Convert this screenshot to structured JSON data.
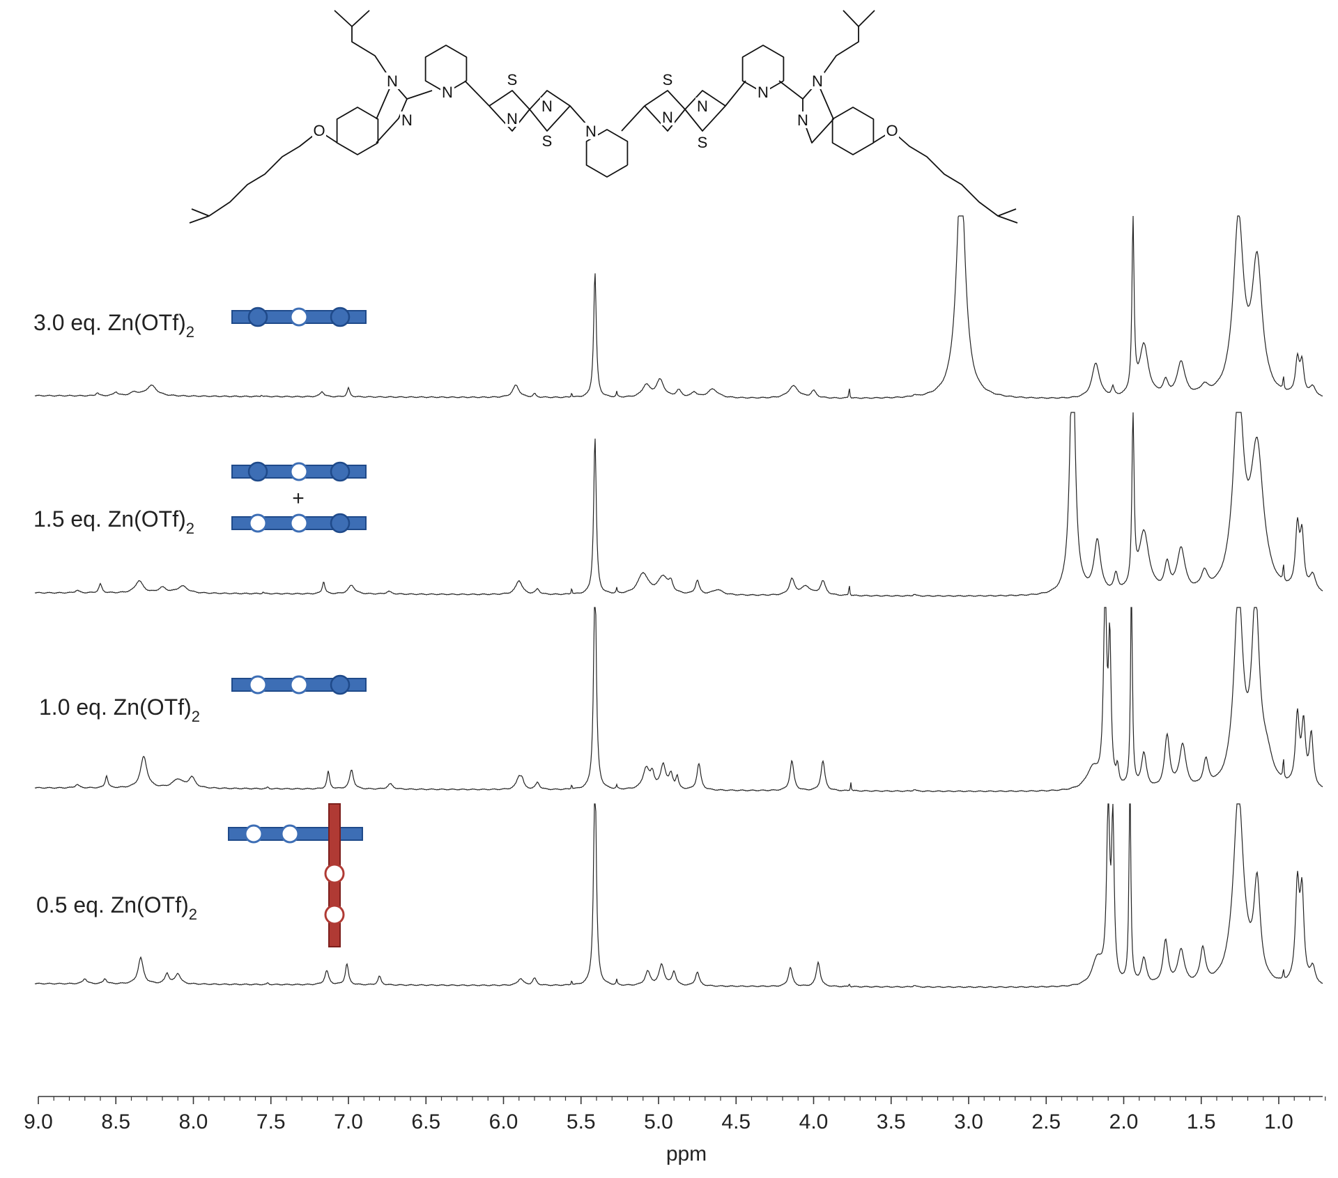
{
  "chart_data": {
    "type": "line",
    "xlabel": "ppm",
    "xlim": [
      9.0,
      0.6
    ],
    "x_reversed": true,
    "ticks": [
      "9.0",
      "8.5",
      "8.0",
      "7.5",
      "7.0",
      "6.5",
      "6.0",
      "5.5",
      "5.0",
      "4.5",
      "4.0",
      "3.5",
      "3.0",
      "2.5",
      "2.0",
      "1.5",
      "1.0"
    ],
    "colors": {
      "trace": "#222222",
      "ligand_blue": "#3d6eb5",
      "ligand_blue_dark": "#1f4a8a",
      "ligand_red": "#b03a34",
      "ligand_red_dark": "#7d1f1c"
    },
    "molecule_labels": {
      "n_left": "N",
      "n_left2": "N",
      "n_py1": "N",
      "n_tt1a": "N",
      "n_tt1b": "N",
      "s_tt1a": "S",
      "s_tt1b": "S",
      "n_py_c": "N",
      "n_tt2a": "N",
      "n_tt2b": "N",
      "s_tt2a": "S",
      "s_tt2b": "S",
      "n_py2": "N",
      "n_right": "N",
      "n_right2": "N",
      "o_left": "O",
      "o_right": "O"
    },
    "series": [
      {
        "label_main": "3.0 eq. Zn(OTf)",
        "label_sub": "2",
        "complex": {
          "rows": [
            [
              "filled",
              "open",
              "filled"
            ]
          ]
        },
        "peaks": [
          [
            8.62,
            0.01,
            0.018
          ],
          [
            8.5,
            0.015,
            0.022
          ],
          [
            8.38,
            0.03,
            0.02
          ],
          [
            8.27,
            0.04,
            0.06
          ],
          [
            7.56,
            0.005,
            0.01
          ],
          [
            7.17,
            0.015,
            0.03
          ],
          [
            7.0,
            0.01,
            0.05
          ],
          [
            5.92,
            0.025,
            0.07
          ],
          [
            5.8,
            0.01,
            0.02
          ],
          [
            5.56,
            0.003,
            0.03
          ],
          [
            5.41,
            0.01,
            0.72
          ],
          [
            5.27,
            0.004,
            0.03
          ],
          [
            5.08,
            0.03,
            0.07
          ],
          [
            4.99,
            0.03,
            0.1
          ],
          [
            4.87,
            0.02,
            0.04
          ],
          [
            4.77,
            0.02,
            0.03
          ],
          [
            4.65,
            0.04,
            0.05
          ],
          [
            4.13,
            0.04,
            0.07
          ],
          [
            4.0,
            0.02,
            0.04
          ],
          [
            3.77,
            0.003,
            0.07
          ],
          [
            3.35,
            0.01,
            0.01
          ],
          [
            3.05,
            0.035,
            1.3
          ],
          [
            2.18,
            0.03,
            0.2
          ],
          [
            2.07,
            0.01,
            0.05
          ],
          [
            1.94,
            0.008,
            1.0
          ],
          [
            1.87,
            0.035,
            0.3
          ],
          [
            1.73,
            0.02,
            0.08
          ],
          [
            1.63,
            0.03,
            0.2
          ],
          [
            1.48,
            0.03,
            0.05
          ],
          [
            1.26,
            0.04,
            1.0
          ],
          [
            1.14,
            0.04,
            0.75
          ],
          [
            0.97,
            0.004,
            0.08
          ],
          [
            0.88,
            0.015,
            0.2
          ],
          [
            0.85,
            0.015,
            0.18
          ],
          [
            0.78,
            0.025,
            0.06
          ]
        ]
      },
      {
        "label_main": "1.5 eq. Zn(OTf)",
        "label_sub": "2",
        "complex": {
          "rows": [
            [
              "filled",
              "open",
              "filled"
            ],
            [
              "open",
              "open",
              "filled"
            ]
          ],
          "joiner": "+"
        },
        "peaks": [
          [
            8.75,
            0.015,
            0.015
          ],
          [
            8.6,
            0.012,
            0.05
          ],
          [
            8.35,
            0.03,
            0.07
          ],
          [
            8.2,
            0.03,
            0.03
          ],
          [
            8.07,
            0.04,
            0.04
          ],
          [
            7.55,
            0.005,
            0.01
          ],
          [
            7.16,
            0.01,
            0.07
          ],
          [
            6.98,
            0.025,
            0.05
          ],
          [
            6.74,
            0.02,
            0.015
          ],
          [
            5.9,
            0.025,
            0.08
          ],
          [
            5.78,
            0.015,
            0.03
          ],
          [
            5.56,
            0.003,
            0.04
          ],
          [
            5.41,
            0.01,
            0.9
          ],
          [
            5.27,
            0.004,
            0.03
          ],
          [
            5.1,
            0.04,
            0.12
          ],
          [
            4.97,
            0.04,
            0.1
          ],
          [
            4.92,
            0.015,
            0.05
          ],
          [
            4.75,
            0.015,
            0.08
          ],
          [
            4.62,
            0.04,
            0.03
          ],
          [
            4.14,
            0.02,
            0.09
          ],
          [
            4.05,
            0.04,
            0.05
          ],
          [
            3.94,
            0.02,
            0.08
          ],
          [
            3.77,
            0.003,
            0.07
          ],
          [
            3.35,
            0.01,
            0.01
          ],
          [
            2.33,
            0.02,
            1.5
          ],
          [
            2.17,
            0.025,
            0.3
          ],
          [
            2.05,
            0.015,
            0.1
          ],
          [
            1.94,
            0.008,
            1.0
          ],
          [
            1.87,
            0.04,
            0.35
          ],
          [
            1.72,
            0.02,
            0.15
          ],
          [
            1.63,
            0.03,
            0.25
          ],
          [
            1.48,
            0.025,
            0.1
          ],
          [
            1.26,
            0.04,
            1.1
          ],
          [
            1.14,
            0.05,
            0.8
          ],
          [
            0.97,
            0.004,
            0.1
          ],
          [
            0.88,
            0.015,
            0.35
          ],
          [
            0.85,
            0.015,
            0.3
          ],
          [
            0.78,
            0.025,
            0.1
          ]
        ]
      },
      {
        "label_main": "1.0 eq. Zn(OTf)",
        "label_sub": "2",
        "complex": {
          "rows": [
            [
              "open",
              "open",
              "filled"
            ]
          ]
        },
        "peaks": [
          [
            8.75,
            0.015,
            0.02
          ],
          [
            8.56,
            0.01,
            0.07
          ],
          [
            8.32,
            0.025,
            0.18
          ],
          [
            8.1,
            0.04,
            0.05
          ],
          [
            8.01,
            0.025,
            0.06
          ],
          [
            7.52,
            0.005,
            0.01
          ],
          [
            7.13,
            0.01,
            0.1
          ],
          [
            6.98,
            0.015,
            0.11
          ],
          [
            6.73,
            0.02,
            0.03
          ],
          [
            5.9,
            0.02,
            0.07
          ],
          [
            5.88,
            0.012,
            0.04
          ],
          [
            5.78,
            0.015,
            0.04
          ],
          [
            5.56,
            0.003,
            0.03
          ],
          [
            5.41,
            0.01,
            1.3
          ],
          [
            5.27,
            0.004,
            0.02
          ],
          [
            5.08,
            0.025,
            0.12
          ],
          [
            5.04,
            0.015,
            0.08
          ],
          [
            4.97,
            0.02,
            0.14
          ],
          [
            4.92,
            0.015,
            0.08
          ],
          [
            4.88,
            0.01,
            0.07
          ],
          [
            4.74,
            0.015,
            0.15
          ],
          [
            4.14,
            0.015,
            0.17
          ],
          [
            3.94,
            0.015,
            0.17
          ],
          [
            3.76,
            0.003,
            0.05
          ],
          [
            3.35,
            0.01,
            0.01
          ],
          [
            2.2,
            0.05,
            0.12
          ],
          [
            2.12,
            0.012,
            1.1
          ],
          [
            2.09,
            0.01,
            0.8
          ],
          [
            2.04,
            0.01,
            0.1
          ],
          [
            1.95,
            0.007,
            1.2
          ],
          [
            1.87,
            0.02,
            0.2
          ],
          [
            1.72,
            0.02,
            0.3
          ],
          [
            1.62,
            0.025,
            0.25
          ],
          [
            1.47,
            0.02,
            0.15
          ],
          [
            1.26,
            0.035,
            1.1
          ],
          [
            1.15,
            0.03,
            1.0
          ],
          [
            1.08,
            0.05,
            0.15
          ],
          [
            0.97,
            0.004,
            0.12
          ],
          [
            0.88,
            0.015,
            0.4
          ],
          [
            0.84,
            0.015,
            0.35
          ],
          [
            0.79,
            0.015,
            0.3
          ]
        ]
      },
      {
        "label_main": "0.5 eq. Zn(OTf)",
        "label_sub": "2",
        "complex": {
          "cross": true
        },
        "peaks": [
          [
            8.7,
            0.015,
            0.03
          ],
          [
            8.57,
            0.012,
            0.03
          ],
          [
            8.34,
            0.02,
            0.15
          ],
          [
            8.17,
            0.015,
            0.06
          ],
          [
            8.1,
            0.02,
            0.06
          ],
          [
            7.52,
            0.005,
            0.01
          ],
          [
            7.14,
            0.015,
            0.08
          ],
          [
            7.01,
            0.012,
            0.12
          ],
          [
            6.8,
            0.012,
            0.05
          ],
          [
            5.89,
            0.02,
            0.04
          ],
          [
            5.8,
            0.015,
            0.04
          ],
          [
            5.56,
            0.003,
            0.03
          ],
          [
            5.41,
            0.01,
            1.3
          ],
          [
            5.27,
            0.004,
            0.03
          ],
          [
            5.07,
            0.02,
            0.08
          ],
          [
            4.98,
            0.02,
            0.12
          ],
          [
            4.9,
            0.015,
            0.08
          ],
          [
            4.75,
            0.015,
            0.08
          ],
          [
            4.15,
            0.015,
            0.11
          ],
          [
            3.97,
            0.015,
            0.14
          ],
          [
            3.77,
            0.003,
            0.02
          ],
          [
            3.35,
            0.01,
            0.01
          ],
          [
            2.17,
            0.04,
            0.15
          ],
          [
            2.1,
            0.012,
            1.0
          ],
          [
            2.07,
            0.01,
            0.9
          ],
          [
            1.96,
            0.007,
            1.2
          ],
          [
            1.87,
            0.02,
            0.15
          ],
          [
            1.73,
            0.02,
            0.25
          ],
          [
            1.63,
            0.025,
            0.2
          ],
          [
            1.49,
            0.02,
            0.2
          ],
          [
            1.26,
            0.04,
            1.1
          ],
          [
            1.14,
            0.025,
            0.55
          ],
          [
            0.97,
            0.004,
            0.06
          ],
          [
            0.88,
            0.015,
            0.55
          ],
          [
            0.85,
            0.015,
            0.5
          ],
          [
            0.78,
            0.02,
            0.1
          ]
        ]
      }
    ]
  }
}
